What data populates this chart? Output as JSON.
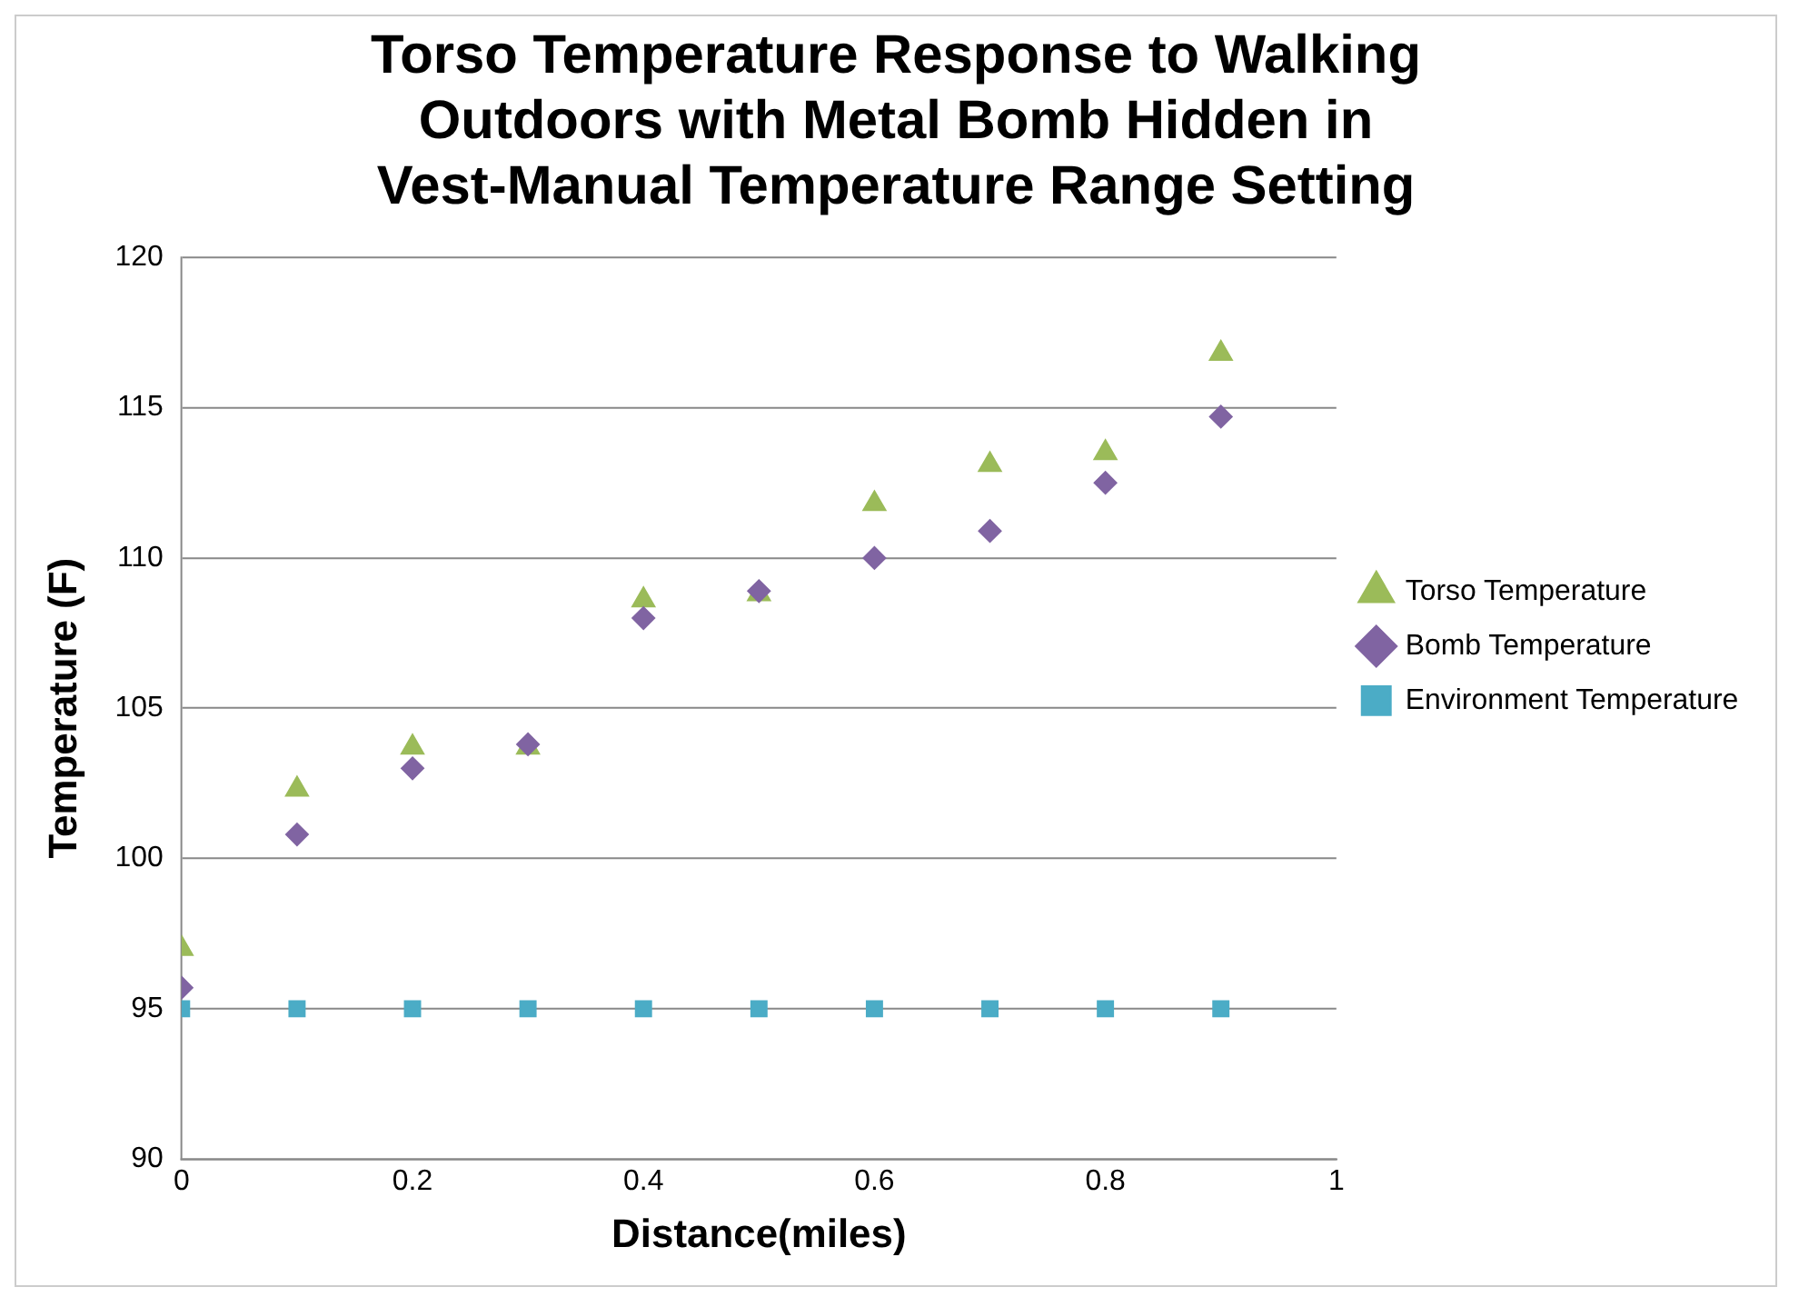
{
  "chart_data": {
    "type": "scatter",
    "title": "Torso Temperature Response to Walking Outdoors with Metal Bomb Hidden in Vest-Manual Temperature Range Setting",
    "xlabel": "Distance(miles)",
    "ylabel": "Temperature (F)",
    "x": [
      0,
      0.1,
      0.2,
      0.3,
      0.4,
      0.5,
      0.6,
      0.7,
      0.8,
      0.9
    ],
    "series": [
      {
        "name": "Torso Temperature",
        "color": "#9bbb59",
        "marker": "triangle",
        "values": [
          97.0,
          102.3,
          103.7,
          103.7,
          108.6,
          108.8,
          111.8,
          113.1,
          113.5,
          116.8
        ]
      },
      {
        "name": "Bomb Temperature",
        "color": "#8064a2",
        "marker": "diamond",
        "values": [
          95.7,
          100.8,
          103.0,
          103.8,
          108.0,
          108.9,
          110.0,
          110.9,
          112.5,
          114.7
        ]
      },
      {
        "name": "Environment Temperature",
        "color": "#4bacc6",
        "marker": "square",
        "values": [
          95,
          95,
          95,
          95,
          95,
          95,
          95,
          95,
          95,
          95
        ]
      }
    ],
    "xlim": [
      0,
      1
    ],
    "xticks": [
      0,
      0.2,
      0.4,
      0.6,
      0.8,
      1
    ],
    "ylim": [
      90,
      120
    ],
    "yticks": [
      90,
      95,
      100,
      105,
      110,
      115,
      120
    ],
    "grid": "y",
    "legend": "right"
  }
}
